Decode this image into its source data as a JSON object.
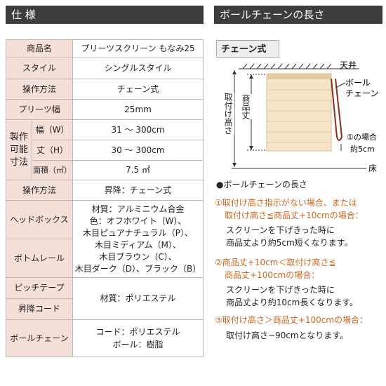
{
  "spec": {
    "title": "仕 様",
    "product_name": {
      "label": "商品名",
      "value": "プリーツスクリーン もなみ25"
    },
    "style": {
      "label": "スタイル",
      "value": "シングルスタイル"
    },
    "operation": {
      "label": "操作方法",
      "value": "チェーン式"
    },
    "pleat_width": {
      "label": "プリーツ幅",
      "value": "25mm"
    },
    "size": {
      "label": [
        "製作",
        "可能",
        "寸法"
      ],
      "width": {
        "label": "幅（W）",
        "value": "31 〜 300cm"
      },
      "height": {
        "label": "丈（H）",
        "value": "30 〜 300cm"
      },
      "area": {
        "label": "面積（㎡）",
        "value": "7.5 ㎡"
      }
    },
    "operation2": {
      "label": "操作方法",
      "value": "昇降：チェーン式"
    },
    "rail": {
      "labels": [
        "ヘッドボックス",
        "ボトムレール"
      ],
      "value": [
        "材質：アルミニウム合金",
        "色：オフホワイト（W）、",
        "木目ピュアナチュラル（P）、",
        "木目ミディアム（M）、",
        "木目ブラウン（C）、",
        "木目ダーク（D）、ブラック（B）"
      ]
    },
    "tape": {
      "labels": [
        "ピッチテープ",
        "昇降コード"
      ],
      "value": "材質：ポリエステル"
    },
    "chain": {
      "label": "ボールチェーン",
      "value": [
        "コード：ポリエステル",
        "ボール：樹脂"
      ]
    }
  },
  "chain_length": {
    "title": "ボールチェーンの長さ",
    "tab": "チェーン式",
    "diagram": {
      "ceiling": "天井",
      "product_height": "商品丈",
      "mount_height": "取付け高さ",
      "ball_chain": [
        "ボール",
        "チェーン"
      ],
      "case": "①の場合",
      "offset": "約5cm",
      "floor": "床"
    },
    "notes_title": "●ボールチェーンの長さ",
    "notes": [
      {
        "condition": [
          "①取付け高さ指示がない場合、または",
          "取付け高さ≦商品丈+10cmの場合："
        ],
        "text": [
          "スクリーンを下げきった時に",
          "商品丈より約5cm短くなります。"
        ]
      },
      {
        "condition": [
          "②商品丈+10cm＜取付け高さ≦",
          "商品丈+100cmの場合："
        ],
        "text": [
          "スクリーンを下げきった時に",
          "商品丈より約10cm長くなります。"
        ]
      },
      {
        "condition": [
          "③取付け高さ＞商品丈+100cmの場合："
        ],
        "text": [
          "取付け高さ−90cmとなります。"
        ]
      }
    ]
  }
}
